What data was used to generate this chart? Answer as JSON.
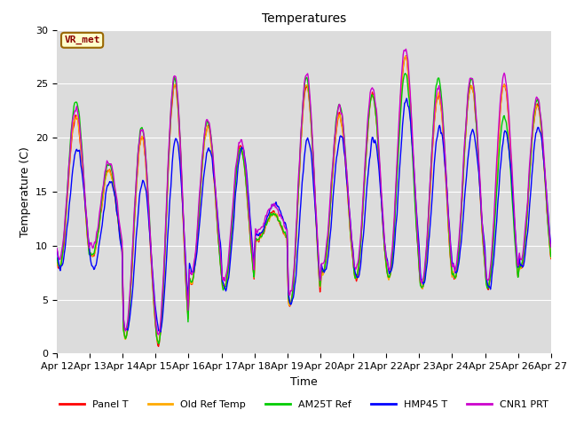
{
  "title": "Temperatures",
  "xlabel": "Time",
  "ylabel": "Temperature (C)",
  "ylim": [
    0,
    30
  ],
  "yticks": [
    0,
    5,
    10,
    15,
    20,
    25,
    30
  ],
  "x_tick_labels": [
    "Apr 12",
    "Apr 13",
    "Apr 14",
    "Apr 15",
    "Apr 16",
    "Apr 17",
    "Apr 18",
    "Apr 19",
    "Apr 20",
    "Apr 21",
    "Apr 22",
    "Apr 23",
    "Apr 24",
    "Apr 25",
    "Apr 26",
    "Apr 27"
  ],
  "legend_entries": [
    "Panel T",
    "Old Ref Temp",
    "AM25T Ref",
    "HMP45 T",
    "CNR1 PRT"
  ],
  "line_colors": [
    "#ff0000",
    "#ffaa00",
    "#00cc00",
    "#0000ff",
    "#cc00cc"
  ],
  "line_width": 1.0,
  "vr_met_label": "VR_met",
  "bg_color": "#dcdcdc",
  "fig_bg": "#ffffff",
  "grid_color": "#ffffff",
  "tick_fontsize": 8,
  "label_fontsize": 9,
  "title_fontsize": 10,
  "legend_fontsize": 8
}
